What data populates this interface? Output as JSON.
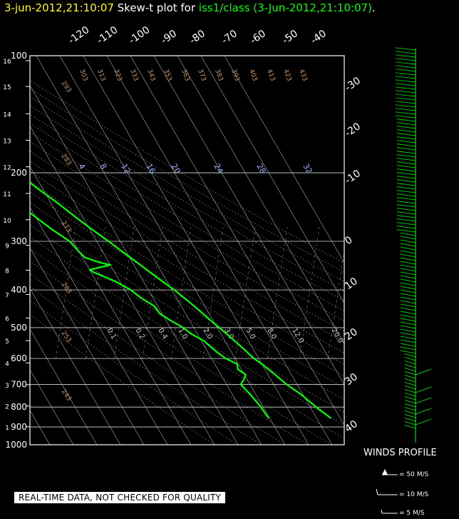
{
  "title": {
    "date": "3-jun-2012,21:10:07",
    "prefix": "Skew-t plot for",
    "station": "iss1/class (3-Jun-2012,21:10:07)",
    "suffix": "."
  },
  "banner": "REAL-TIME DATA, NOT CHECKED FOR QUALITY",
  "colors": {
    "trace": "#00ff00",
    "axis": "#ffffff",
    "isotherm": "#c8c8c8",
    "theta": "#c89664",
    "mixing": "#96b4ff",
    "title_date": "#ffff00"
  },
  "chart_data": {
    "type": "line",
    "pressure_labels": [
      "100",
      "200",
      "300",
      "400",
      "500",
      "600",
      "700",
      "800",
      "900",
      "1000"
    ],
    "height_km_labels": [
      "1",
      "2",
      "3",
      "4",
      "5",
      "6",
      "7",
      "8",
      "9",
      "10",
      "11",
      "12",
      "13",
      "14",
      "15",
      "16"
    ],
    "top_temp_labels": [
      "-120",
      "-110",
      "-100",
      "-90",
      "-80",
      "-70",
      "-60",
      "-50",
      "-40"
    ],
    "right_temp_labels": [
      "-30",
      "-20",
      "-10",
      "0",
      "10",
      "20",
      "30",
      "40"
    ],
    "theta_labels": [
      "303",
      "313",
      "323",
      "333",
      "343",
      "353",
      "363",
      "373",
      "383",
      "393",
      "403",
      "413",
      "423",
      "433",
      "293",
      "283",
      "273",
      "263",
      "253",
      "243"
    ],
    "mixing_labels": [
      "4",
      "8",
      "12",
      "16",
      "20",
      "24",
      "28",
      "32"
    ],
    "mixing_low_labels": [
      "0.1",
      "0.2",
      "0.4",
      "1.0",
      "2.0",
      "3.0",
      "5.0",
      "8.0",
      "12.0",
      "20.0"
    ],
    "series": [
      {
        "role": "temperature",
        "p": [
          855,
          800,
          740,
          700,
          660,
          640,
          620,
          600,
          560,
          520,
          480,
          440,
          400,
          380,
          360,
          340,
          320,
          300,
          280,
          260,
          240,
          220,
          200,
          180,
          170,
          160,
          150,
          140,
          130,
          120,
          110,
          100
        ],
        "t": [
          16,
          12.5,
          9,
          5.5,
          3,
          1.5,
          0,
          -2,
          -4.5,
          -7.5,
          -11,
          -14.5,
          -19,
          -22,
          -25,
          -28,
          -31.5,
          -35,
          -39,
          -43,
          -47,
          -52,
          -57,
          -60,
          -61,
          -60,
          -60.5,
          -60,
          -62,
          -63,
          -62,
          -61
        ]
      },
      {
        "role": "dewpoint",
        "p": [
          855,
          800,
          740,
          700,
          680,
          660,
          640,
          620,
          600,
          580,
          560,
          540,
          520,
          500,
          480,
          460,
          440,
          420,
          400,
          380,
          360,
          355,
          345,
          340,
          330,
          320,
          300,
          280,
          260,
          240,
          220,
          210,
          200,
          190,
          180,
          170,
          160,
          150,
          140,
          130,
          120,
          110,
          100
        ],
        "t": [
          -10.5,
          -11,
          -12.5,
          -14,
          -11.5,
          -9.5,
          -11.5,
          -10.5,
          -14,
          -16,
          -17.5,
          -19,
          -22.5,
          -24.5,
          -28,
          -31,
          -31.5,
          -35,
          -37.5,
          -42,
          -49,
          -50,
          -40,
          -44,
          -49,
          -50,
          -51.5,
          -56,
          -60,
          -64,
          -69,
          -71,
          -68,
          -62,
          -75,
          -82,
          -85,
          -88,
          -91,
          -95,
          -92,
          -88,
          -85
        ]
      }
    ]
  }
}
